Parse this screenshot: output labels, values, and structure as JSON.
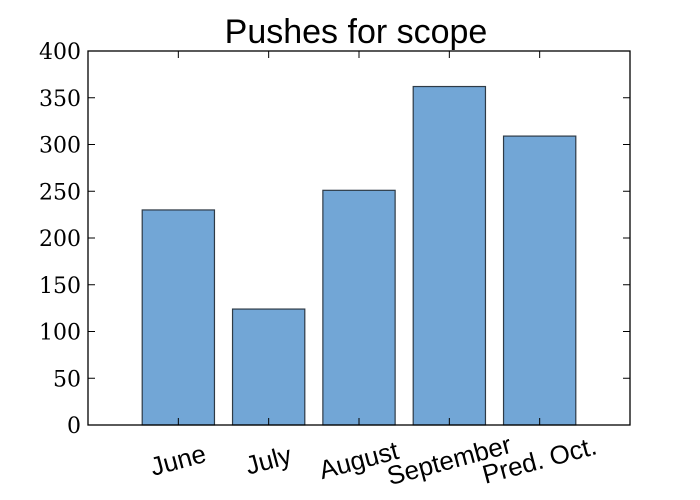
{
  "chart_data": {
    "type": "bar",
    "title": "Pushes for scope",
    "categories": [
      "June",
      "July",
      "August",
      "September",
      "Pred. Oct."
    ],
    "values": [
      230,
      124,
      251,
      362,
      309
    ],
    "ylim": [
      0,
      400
    ],
    "yticks": [
      0,
      50,
      100,
      150,
      200,
      250,
      300,
      350,
      400
    ],
    "xlabel": "",
    "ylabel": "",
    "grid": false,
    "bar_color": "#72a6d6",
    "bar_edge_color": "#2f3b46",
    "axis_color": "#000000"
  }
}
